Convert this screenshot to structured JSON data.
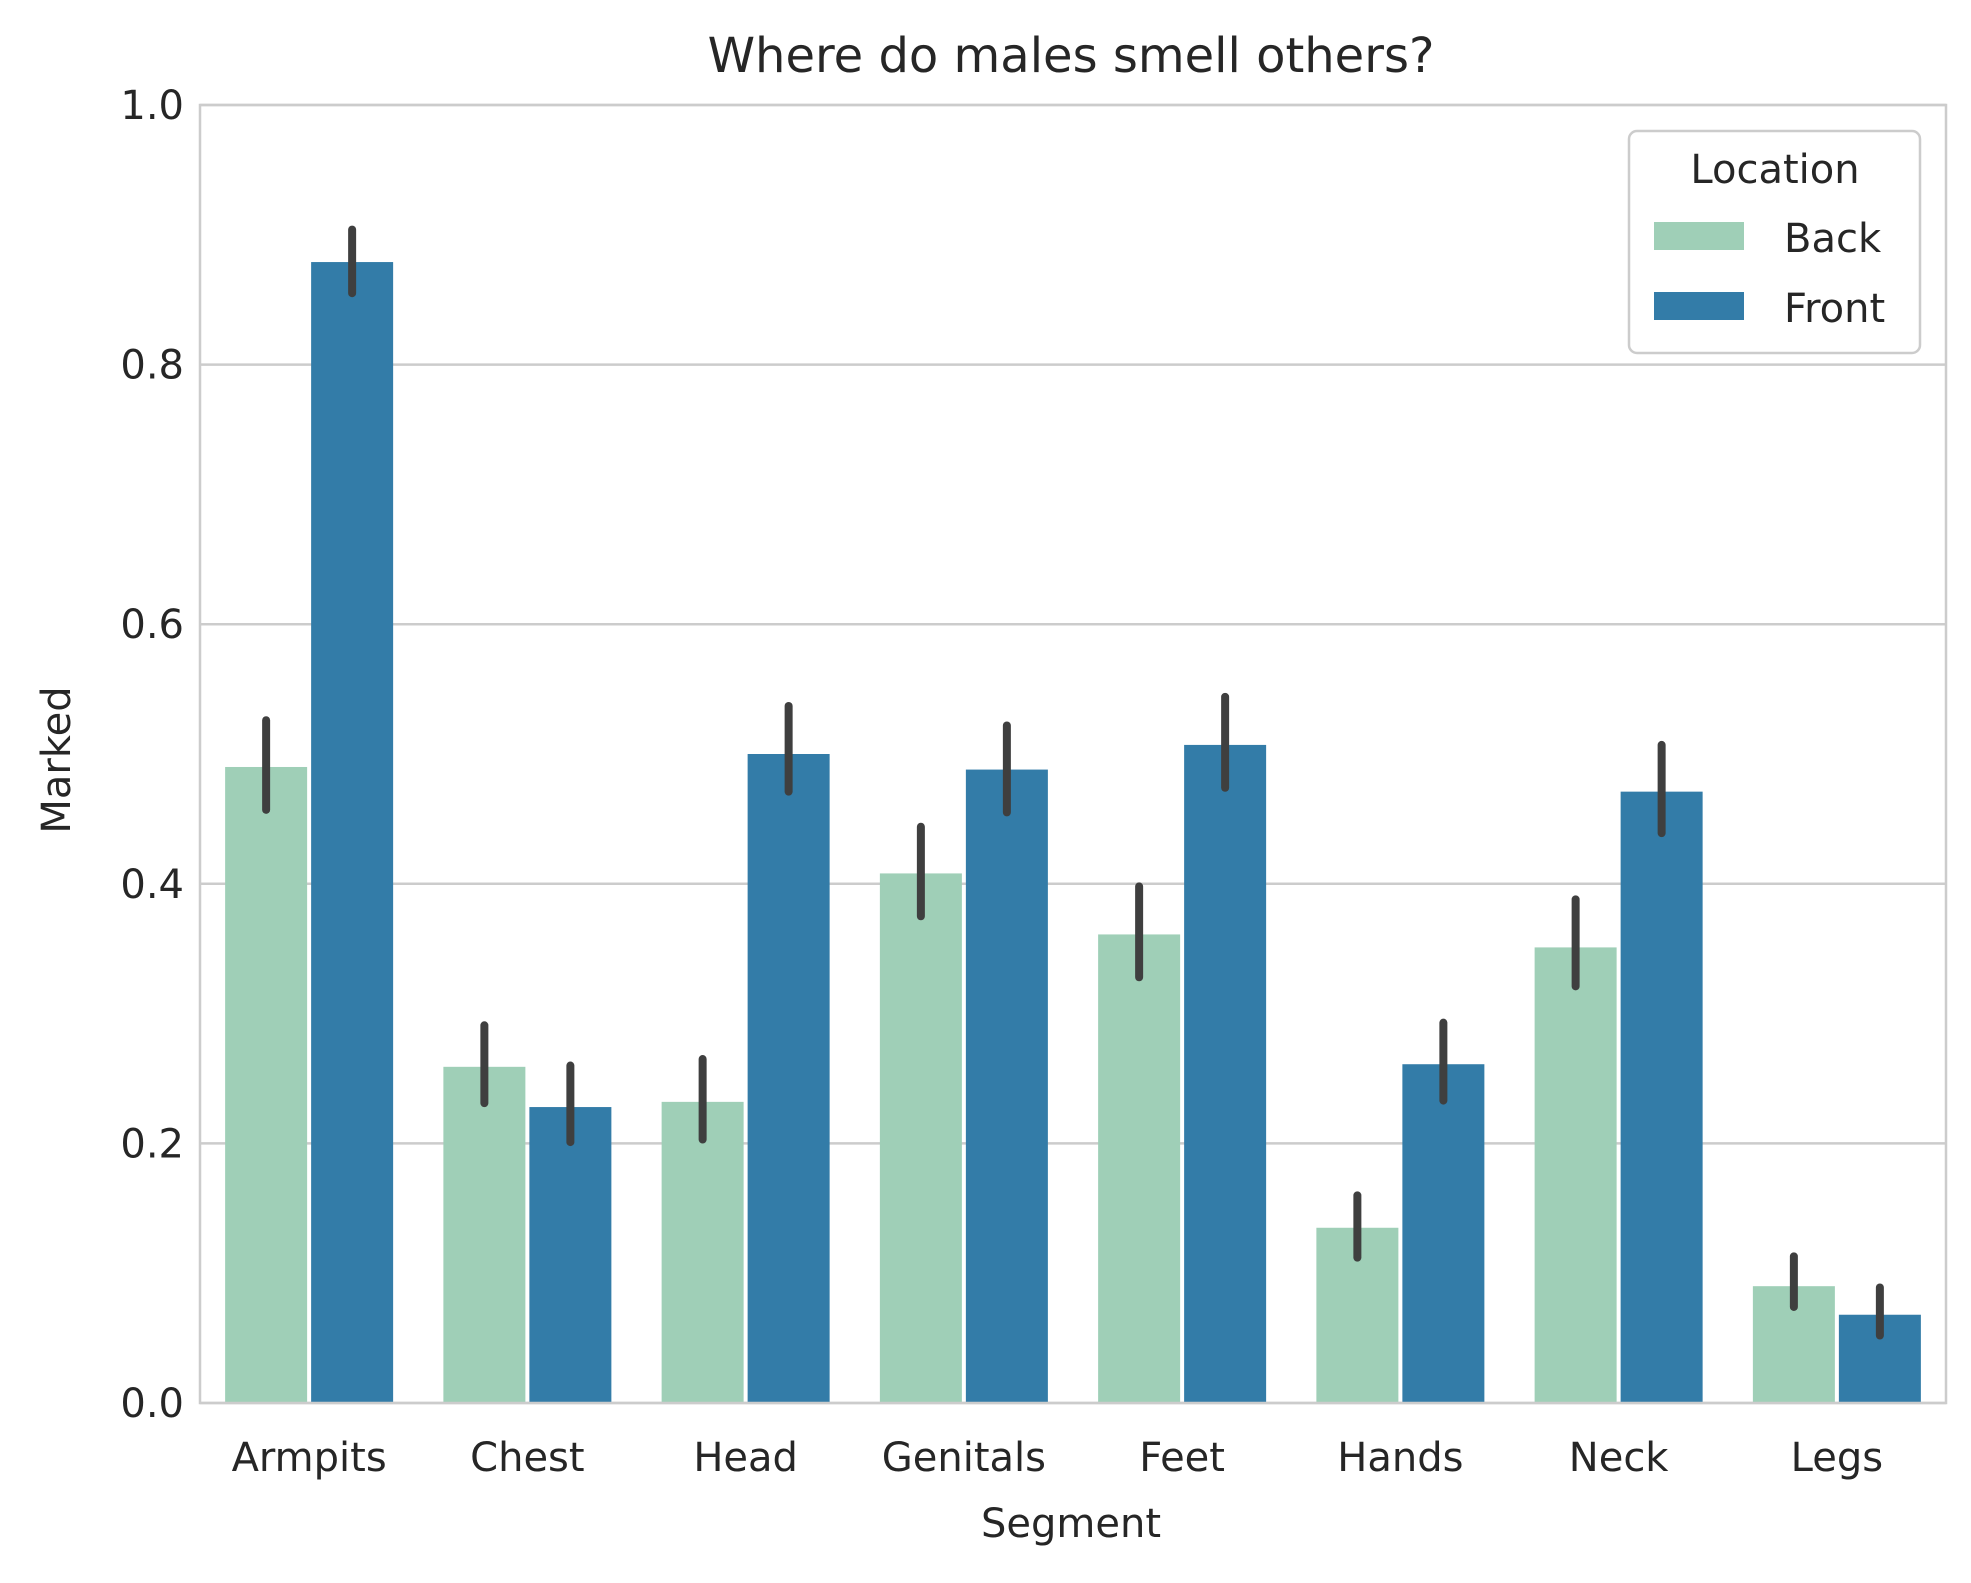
{
  "chart_data": {
    "type": "bar",
    "title": "Where do males smell others?",
    "xlabel": "Segment",
    "ylabel": "Marked",
    "categories": [
      "Armpits",
      "Chest",
      "Head",
      "Genitals",
      "Feet",
      "Hands",
      "Neck",
      "Legs"
    ],
    "series": [
      {
        "name": "Back",
        "color": "#9fcfb7",
        "values": [
          0.49,
          0.259,
          0.232,
          0.408,
          0.361,
          0.135,
          0.351,
          0.09
        ],
        "ci_low": [
          0.457,
          0.231,
          0.203,
          0.375,
          0.328,
          0.112,
          0.321,
          0.074
        ],
        "ci_high": [
          0.526,
          0.291,
          0.265,
          0.444,
          0.398,
          0.16,
          0.388,
          0.113
        ]
      },
      {
        "name": "Front",
        "color": "#337ca8",
        "values": [
          0.879,
          0.228,
          0.5,
          0.488,
          0.507,
          0.261,
          0.471,
          0.068
        ],
        "ci_low": [
          0.855,
          0.201,
          0.471,
          0.455,
          0.474,
          0.233,
          0.439,
          0.052
        ],
        "ci_high": [
          0.904,
          0.26,
          0.537,
          0.522,
          0.544,
          0.293,
          0.507,
          0.089
        ]
      }
    ],
    "ylim": [
      0,
      1.0
    ],
    "yticks": [
      "0.0",
      "0.2",
      "0.4",
      "0.6",
      "0.8",
      "1.0"
    ],
    "grid": "horizontal",
    "legend": {
      "title": "Location",
      "position": "top-right"
    },
    "errorbar_color": "#3f3f3f"
  }
}
